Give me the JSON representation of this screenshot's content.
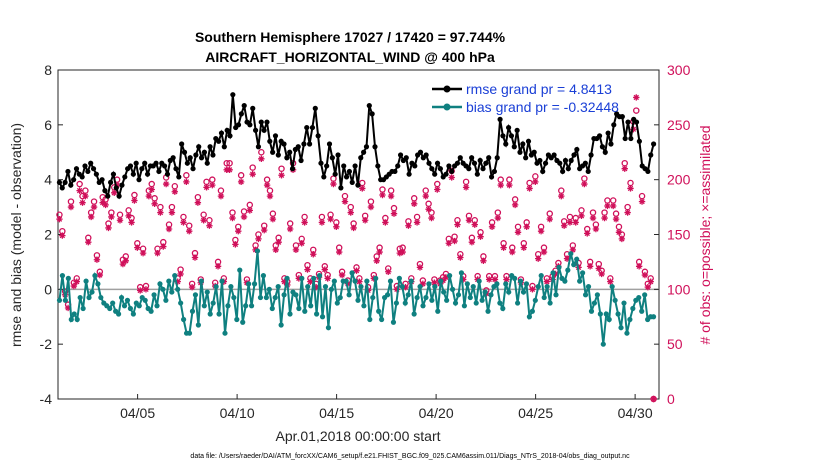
{
  "chart_data": {
    "type": "line",
    "title": "Southern Hemisphere 17027 / 17420 = 97.744%",
    "subtitle": "AIRCRAFT_HORIZONTAL_WIND @ 400 hPa",
    "xlabel": "Apr.01,2018 00:00:00 start",
    "ylabel": "rmse and bias (model - observation)",
    "y2label": "# of obs: o=possible; ×=assimilated",
    "xlim": [
      1,
      31.2
    ],
    "ylim": [
      -4,
      8
    ],
    "y2lim": [
      0,
      300
    ],
    "x_tick_values": [
      5,
      10,
      15,
      20,
      25,
      30
    ],
    "x_tick_labels": [
      "04/05",
      "04/10",
      "04/15",
      "04/20",
      "04/25",
      "04/30"
    ],
    "y_ticks": [
      -4,
      -2,
      0,
      2,
      4,
      6,
      8
    ],
    "y2_ticks": [
      0,
      50,
      100,
      150,
      200,
      250,
      300
    ],
    "legend_position": "top-right",
    "footnote": "data file: /Users/raeder/DAI/ATM_forcXX/CAM6_setup/f.e21.FHIST_BGC.f09_025.CAM6assim.011/Diags_NTrS_2018-04/obs_diag_output.nc",
    "series": [
      {
        "name": "rmse grand pr = 4.8413",
        "axis": "left",
        "color": "#000000",
        "marker": "filled-circle",
        "values": [
          3.9,
          3.7,
          3.9,
          4.3,
          3.8,
          4.0,
          4.4,
          4.2,
          4.1,
          4.5,
          4.3,
          4.6,
          4.4,
          4.2,
          3.9,
          4.0,
          3.6,
          3.4,
          3.9,
          4.2,
          3.7,
          3.4,
          3.8,
          4.1,
          4.4,
          4.5,
          4.2,
          4.6,
          4.0,
          4.4,
          4.6,
          4.2,
          4.5,
          4.5,
          4.6,
          4.3,
          4.6,
          4.5,
          4.2,
          4.7,
          4.8,
          4.4,
          4.1,
          5.3,
          5.0,
          4.6,
          4.8,
          4.4,
          4.9,
          5.2,
          4.8,
          5.0,
          4.6,
          5.2,
          4.9,
          5.5,
          5.4,
          5.7,
          5.2,
          5.8,
          5.6,
          7.1,
          5.9,
          6.0,
          6.4,
          6.7,
          6.1,
          6.0,
          6.6,
          5.8,
          5.2,
          6.1,
          5.8,
          6.1,
          5.4,
          5.0,
          5.6,
          4.9,
          5.4,
          5.3,
          4.8,
          5.0,
          4.4,
          5.1,
          5.2,
          4.7,
          5.3,
          5.9,
          5.3,
          5.9,
          6.6,
          5.6,
          4.6,
          4.1,
          4.5,
          5.3,
          4.8,
          4.2,
          4.9,
          3.7,
          4.5,
          4.1,
          4.3,
          3.9,
          4.5,
          3.8,
          4.8,
          5.0,
          5.2,
          6.7,
          6.4,
          5.2,
          4.5,
          4.0,
          4.0,
          4.1,
          4.2,
          4.3,
          4.3,
          4.5,
          4.9,
          4.7,
          4.8,
          4.2,
          4.6,
          4.5,
          4.9,
          5.0,
          4.8,
          4.9,
          4.6,
          4.4,
          4.2,
          4.6,
          4.4,
          4.1,
          4.2,
          4.5,
          4.3,
          4.5,
          4.6,
          4.8,
          4.6,
          4.5,
          4.4,
          4.8,
          4.6,
          4.2,
          4.7,
          4.4,
          4.6,
          4.8,
          4.1,
          4.3,
          4.8,
          6.2,
          5.6,
          5.3,
          5.9,
          5.6,
          5.2,
          5.8,
          5.0,
          5.3,
          4.8,
          5.4,
          4.9,
          5.0,
          4.6,
          4.7,
          4.3,
          4.6,
          4.9,
          4.8,
          4.9,
          4.7,
          4.6,
          4.3,
          4.7,
          4.4,
          4.7,
          4.9,
          5.1,
          4.4,
          4.5,
          4.6,
          4.3,
          4.9,
          5.5,
          5.5,
          5.6,
          5.2,
          5.0,
          5.7,
          5.3,
          6.0,
          6.4,
          6.3,
          6.3,
          5.5,
          6.1,
          5.5,
          6.2,
          6.1,
          5.4,
          4.5,
          4.4,
          4.3,
          4.9,
          5.3
        ]
      },
      {
        "name": "bias grand pr = -0.32448",
        "axis": "left",
        "color": "#0f8080",
        "marker": "filled-circle",
        "values": [
          -0.4,
          0.5,
          -0.4,
          0.4,
          -1.1,
          -0.9,
          -1.1,
          -0.3,
          -0.7,
          0.3,
          -0.3,
          -0.1,
          0.5,
          0.2,
          -0.3,
          -0.5,
          -0.6,
          -0.7,
          -0.5,
          -0.8,
          -0.9,
          -0.3,
          -0.6,
          -0.4,
          -0.7,
          -0.9,
          -0.5,
          -0.6,
          -0.3,
          -0.4,
          -0.7,
          -0.8,
          -0.2,
          -0.6,
          0.2,
          0.0,
          -0.4,
          0.3,
          -0.1,
          0.5,
          0.0,
          -0.5,
          -1.1,
          -1.6,
          -1.6,
          -0.8,
          -0.2,
          -1.3,
          0.3,
          -0.6,
          -0.1,
          -0.9,
          -0.5,
          0.1,
          -0.9,
          0.3,
          -1.6,
          -0.6,
          0.1,
          -0.3,
          -1.1,
          0.7,
          -1.2,
          -0.6,
          0.2,
          -0.6,
          0.2,
          1.4,
          -0.3,
          0.5,
          -0.3,
          0.0,
          -0.7,
          -0.3,
          0.1,
          -1.3,
          -0.2,
          0.4,
          -0.9,
          -0.1,
          -0.2,
          -0.7,
          0.4,
          -0.8,
          0.1,
          -0.6,
          0.4,
          -0.9,
          0.5,
          -1.0,
          0.1,
          -1.4,
          0.0,
          0.3,
          -0.5,
          -0.3,
          0.3,
          0.3,
          -0.2,
          0.6,
          0.3,
          -0.4,
          0.1,
          -0.6,
          0.3,
          -1.1,
          -0.3,
          0.4,
          -0.8,
          -1.1,
          -0.3,
          -0.2,
          0.3,
          -1.2,
          -0.5,
          0.4,
          0.1,
          -0.5,
          -0.2,
          0.3,
          -0.9,
          -0.3,
          0.1,
          -0.6,
          -0.3,
          0.2,
          -0.4,
          0.1,
          -0.8,
          0.3,
          -0.1,
          -0.4,
          0.5,
          0.0,
          -0.5,
          -0.2,
          0.6,
          -0.6,
          0.2,
          -0.3,
          0.1,
          -0.5,
          0.3,
          -0.4,
          -0.1,
          -0.8,
          -0.2,
          0.1,
          0.2,
          -0.5,
          -0.7,
          0.2,
          -0.1,
          0.5,
          0.4,
          -0.5,
          0.3,
          -0.1,
          0.2,
          -1.0,
          -0.8,
          -0.4,
          0.1,
          0.5,
          -0.3,
          0.1,
          -0.5,
          0.6,
          -0.2,
          0.8,
          0.4,
          0.3,
          0.7,
          1.3,
          0.9,
          1.1,
          0.3,
          0.6,
          -0.2,
          0.1,
          -0.8,
          -0.5,
          -0.2,
          -0.9,
          -2.0,
          -0.9,
          -1.1,
          0.1,
          -0.4,
          -0.9,
          -1.4,
          -0.5,
          -1.6,
          -1.1,
          -0.7,
          -0.4,
          -0.3,
          -0.8,
          -0.2,
          -1.1,
          -1.0,
          -1.0
        ]
      },
      {
        "name": "# of obs possible",
        "axis": "right",
        "color": "#d0105a",
        "marker": "open-circle",
        "values": [
          168,
          153,
          98,
          86,
          180,
          106,
          110,
          196,
          185,
          190,
          147,
          170,
          180,
          131,
          116,
          184,
          182,
          160,
          170,
          193,
          200,
          168,
          127,
          130,
          172,
          165,
          186,
          142,
          102,
          137,
          103,
          190,
          196,
          183,
          137,
          175,
          143,
          202,
          159,
          175,
          194,
          110,
          118,
          166,
          204,
          158,
          105,
          133,
          184,
          109,
          168,
          198,
          163,
          200,
          106,
          125,
          190,
          110,
          215,
          215,
          170,
          145,
          157,
          204,
          171,
          109,
          177,
          211,
          140,
          150,
          225,
          158,
          200,
          190,
          169,
          140,
          147,
          210,
          110,
          107,
          160,
          215,
          140,
          113,
          146,
          166,
          122,
          110,
          136,
          105,
          114,
          166,
          121,
          113,
          168,
          201,
          161,
          138,
          116,
          185,
          108,
          175,
          160,
          120,
          110,
          197,
          167,
          102,
          180,
          113,
          130,
          138,
          191,
          165,
          119,
          190,
          174,
          103,
          137,
          138,
          105,
          162,
          110,
          183,
          166,
          123,
          108,
          190,
          178,
          170,
          109,
          196,
          108,
          111,
          114,
          146,
          208,
          148,
          163,
          132,
          112,
          198,
          167,
          147,
          163,
          112,
          152,
          130,
          99,
          112,
          161,
          112,
          170,
          200,
          142,
          112,
          200,
          138,
          182,
          157,
          109,
          142,
          161,
          197,
          103,
          203,
          132,
          157,
          138,
          110,
          169,
          112,
          117,
          124,
          190,
          162,
          132,
          166,
          140,
          165,
          124,
          172,
          201,
          155,
          125,
          170,
          159,
          123,
          117,
          170,
          181,
          110,
          181,
          169,
          157,
          150,
          215,
          175,
          197,
          253,
          263,
          125,
          185,
          116,
          105,
          110,
          0
        ]
      },
      {
        "name": "# of obs assimilated",
        "axis": "right",
        "color": "#d0105a",
        "marker": "asterisk",
        "values": [
          164,
          149,
          95,
          83,
          175,
          103,
          107,
          190,
          179,
          185,
          143,
          166,
          175,
          127,
          113,
          179,
          177,
          156,
          166,
          188,
          195,
          163,
          123,
          126,
          167,
          161,
          181,
          138,
          99,
          133,
          100,
          185,
          191,
          178,
          133,
          170,
          139,
          196,
          155,
          170,
          189,
          107,
          114,
          161,
          198,
          153,
          102,
          129,
          179,
          106,
          163,
          193,
          158,
          195,
          103,
          121,
          185,
          107,
          209,
          209,
          165,
          141,
          153,
          198,
          166,
          106,
          172,
          205,
          136,
          146,
          219,
          154,
          195,
          185,
          164,
          136,
          143,
          204,
          107,
          104,
          155,
          209,
          136,
          110,
          142,
          161,
          118,
          107,
          132,
          102,
          111,
          161,
          118,
          110,
          164,
          196,
          157,
          134,
          113,
          180,
          105,
          170,
          156,
          117,
          107,
          192,
          163,
          99,
          175,
          110,
          126,
          134,
          186,
          161,
          116,
          185,
          169,
          100,
          133,
          134,
          102,
          158,
          107,
          178,
          161,
          120,
          105,
          185,
          173,
          165,
          106,
          191,
          105,
          108,
          111,
          142,
          202,
          144,
          159,
          129,
          109,
          193,
          163,
          143,
          159,
          109,
          148,
          126,
          96,
          109,
          157,
          109,
          165,
          195,
          138,
          109,
          195,
          134,
          177,
          152,
          106,
          138,
          157,
          192,
          100,
          198,
          128,
          153,
          134,
          107,
          164,
          109,
          114,
          121,
          185,
          158,
          128,
          161,
          136,
          161,
          120,
          167,
          196,
          151,
          121,
          165,
          155,
          119,
          114,
          165,
          176,
          107,
          176,
          164,
          152,
          146,
          210,
          170,
          192,
          246,
          275,
          121,
          180,
          113,
          102,
          107,
          0
        ]
      }
    ]
  }
}
